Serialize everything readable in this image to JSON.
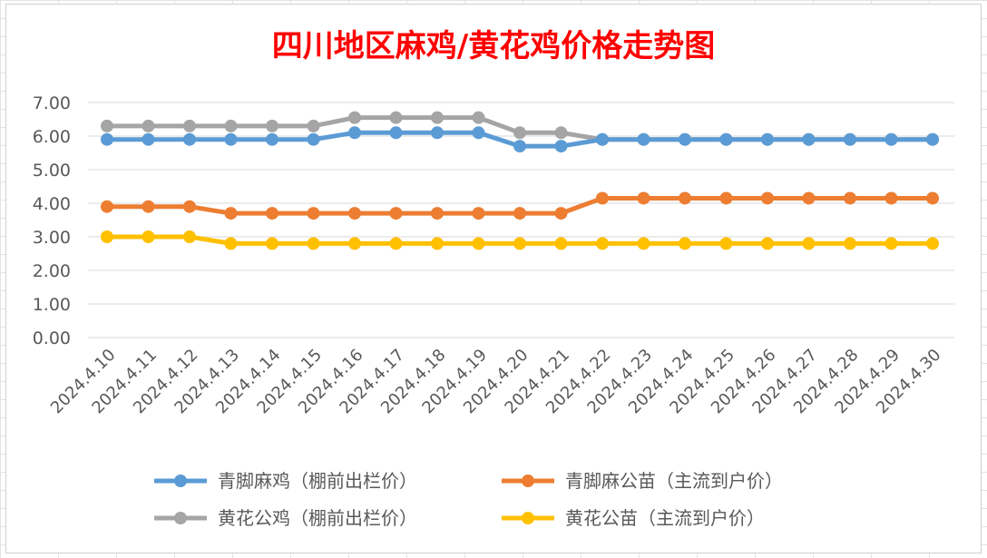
{
  "chart_data": {
    "type": "line",
    "title": "四川地区麻鸡/黄花鸡价格走势图",
    "xlabel": "",
    "ylabel": "",
    "categories": [
      "2024.4.10",
      "2024.4.11",
      "2024.4.12",
      "2024.4.13",
      "2024.4.14",
      "2024.4.15",
      "2024.4.16",
      "2024.4.17",
      "2024.4.18",
      "2024.4.19",
      "2024.4.20",
      "2024.4.21",
      "2024.4.22",
      "2024.4.23",
      "2024.4.24",
      "2024.4.25",
      "2024.4.26",
      "2024.4.27",
      "2024.4.28",
      "2024.4.29",
      "2024.4.30"
    ],
    "ylim": [
      0,
      7
    ],
    "yticks": [
      "0.00",
      "1.00",
      "2.00",
      "3.00",
      "4.00",
      "5.00",
      "6.00",
      "7.00"
    ],
    "grid": true,
    "legend_position": "bottom",
    "series": [
      {
        "name": "青脚麻鸡（棚前出栏价）",
        "color": "#5B9BD5",
        "values": [
          5.9,
          5.9,
          5.9,
          5.9,
          5.9,
          5.9,
          6.1,
          6.1,
          6.1,
          6.1,
          5.7,
          5.7,
          5.9,
          5.9,
          5.9,
          5.9,
          5.9,
          5.9,
          5.9,
          5.9,
          5.9
        ]
      },
      {
        "name": "青脚麻公苗（主流到户价）",
        "color": "#ED7D31",
        "values": [
          3.9,
          3.9,
          3.9,
          3.7,
          3.7,
          3.7,
          3.7,
          3.7,
          3.7,
          3.7,
          3.7,
          3.7,
          4.15,
          4.15,
          4.15,
          4.15,
          4.15,
          4.15,
          4.15,
          4.15,
          4.15
        ]
      },
      {
        "name": "黄花公鸡（棚前出栏价）",
        "color": "#A5A5A5",
        "values": [
          6.3,
          6.3,
          6.3,
          6.3,
          6.3,
          6.3,
          6.55,
          6.55,
          6.55,
          6.55,
          6.1,
          6.1,
          5.9,
          5.9,
          5.9,
          5.9,
          5.9,
          5.9,
          5.9,
          5.9,
          5.9
        ]
      },
      {
        "name": "黄花公苗（主流到户价）",
        "color": "#FFC000",
        "values": [
          3.0,
          3.0,
          3.0,
          2.8,
          2.8,
          2.8,
          2.8,
          2.8,
          2.8,
          2.8,
          2.8,
          2.8,
          2.8,
          2.8,
          2.8,
          2.8,
          2.8,
          2.8,
          2.8,
          2.8,
          2.8
        ]
      }
    ],
    "title_color": "#FF0000"
  }
}
